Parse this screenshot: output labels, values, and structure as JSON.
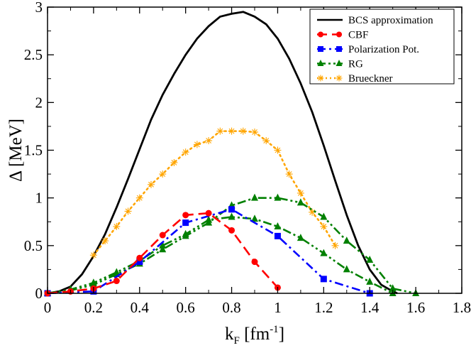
{
  "chart_data": {
    "type": "line",
    "xlabel": {
      "main": "k",
      "sub": "F",
      "unit_pre": " [fm",
      "unit_sup": "-1",
      "unit_post": "]"
    },
    "ylabel": "Δ [MeV]",
    "xlim": [
      0,
      1.8
    ],
    "ylim": [
      0,
      3
    ],
    "xticks": [
      0,
      0.2,
      0.4,
      0.6,
      0.8,
      1,
      1.2,
      1.4,
      1.6,
      1.8
    ],
    "xtick_labels": [
      "0",
      "0.2",
      "0.4",
      "0.6",
      "0.8",
      "1",
      "1.2",
      "1.4",
      "1.6",
      "1.8"
    ],
    "yticks": [
      0,
      0.5,
      1,
      1.5,
      2,
      2.5,
      3
    ],
    "ytick_labels": [
      "0",
      "0.5",
      "1",
      "1.5",
      "2",
      "2.5",
      "3"
    ],
    "legend_position": "top-right",
    "series": [
      {
        "name": "BCS approximation",
        "color": "#000000",
        "dash": "solid",
        "marker": "none",
        "x": [
          0,
          0.05,
          0.1,
          0.15,
          0.2,
          0.25,
          0.3,
          0.35,
          0.4,
          0.45,
          0.5,
          0.55,
          0.6,
          0.65,
          0.7,
          0.75,
          0.8,
          0.85,
          0.9,
          0.95,
          1.0,
          1.05,
          1.1,
          1.15,
          1.2,
          1.25,
          1.3,
          1.35,
          1.4,
          1.45,
          1.5,
          1.52
        ],
        "y": [
          0,
          0.02,
          0.07,
          0.2,
          0.39,
          0.62,
          0.9,
          1.2,
          1.51,
          1.82,
          2.08,
          2.3,
          2.5,
          2.67,
          2.8,
          2.9,
          2.93,
          2.95,
          2.9,
          2.82,
          2.67,
          2.46,
          2.2,
          1.9,
          1.55,
          1.18,
          0.82,
          0.5,
          0.25,
          0.09,
          0.02,
          0
        ]
      },
      {
        "name": "CBF",
        "color": "#ff0000",
        "dash": "long-dash",
        "marker": "circle",
        "x": [
          0,
          0.1,
          0.2,
          0.3,
          0.4,
          0.5,
          0.6,
          0.7,
          0.8,
          0.9,
          1.0
        ],
        "y": [
          0,
          0.02,
          0.05,
          0.13,
          0.37,
          0.61,
          0.82,
          0.84,
          0.66,
          0.33,
          0.06
        ]
      },
      {
        "name": "Polarization Pot.",
        "color": "#0000ff",
        "dash": "dash-dot",
        "marker": "square",
        "x": [
          0,
          0.2,
          0.4,
          0.6,
          0.8,
          1.0,
          1.2,
          1.4
        ],
        "y": [
          0,
          0.02,
          0.33,
          0.74,
          0.88,
          0.6,
          0.15,
          0
        ]
      },
      {
        "name": "RG",
        "color": "#008000",
        "dash": "dash-dot-dot",
        "marker": "triangle",
        "x": [
          0,
          0.1,
          0.2,
          0.3,
          0.4,
          0.5,
          0.6,
          0.7,
          0.8,
          0.9,
          1.0,
          1.1,
          1.2,
          1.3,
          1.4,
          1.5,
          1.6
        ],
        "y": [
          0,
          0.03,
          0.09,
          0.2,
          0.31,
          0.46,
          0.6,
          0.74,
          0.92,
          1.0,
          1.0,
          0.95,
          0.8,
          0.55,
          0.35,
          0.05,
          0
        ],
        "x2": [
          0,
          0.1,
          0.2,
          0.3,
          0.4,
          0.5,
          0.6,
          0.7,
          0.8,
          0.9,
          1.0,
          1.1,
          1.2,
          1.3,
          1.4,
          1.5
        ],
        "y2": [
          0,
          0.04,
          0.11,
          0.22,
          0.34,
          0.5,
          0.62,
          0.77,
          0.8,
          0.78,
          0.7,
          0.58,
          0.42,
          0.25,
          0.12,
          0
        ]
      },
      {
        "name": "Brueckner",
        "color": "#ffa500",
        "dash": "dotted",
        "marker": "star",
        "x": [
          0.2,
          0.25,
          0.3,
          0.35,
          0.4,
          0.45,
          0.5,
          0.55,
          0.6,
          0.65,
          0.7,
          0.75,
          0.8,
          0.85,
          0.9,
          0.95,
          1.0,
          1.05,
          1.1,
          1.15,
          1.2,
          1.25
        ],
        "y": [
          0.4,
          0.55,
          0.7,
          0.86,
          1.0,
          1.14,
          1.25,
          1.37,
          1.48,
          1.56,
          1.6,
          1.7,
          1.7,
          1.7,
          1.69,
          1.6,
          1.5,
          1.25,
          1.05,
          0.85,
          0.7,
          0.5
        ]
      }
    ]
  }
}
